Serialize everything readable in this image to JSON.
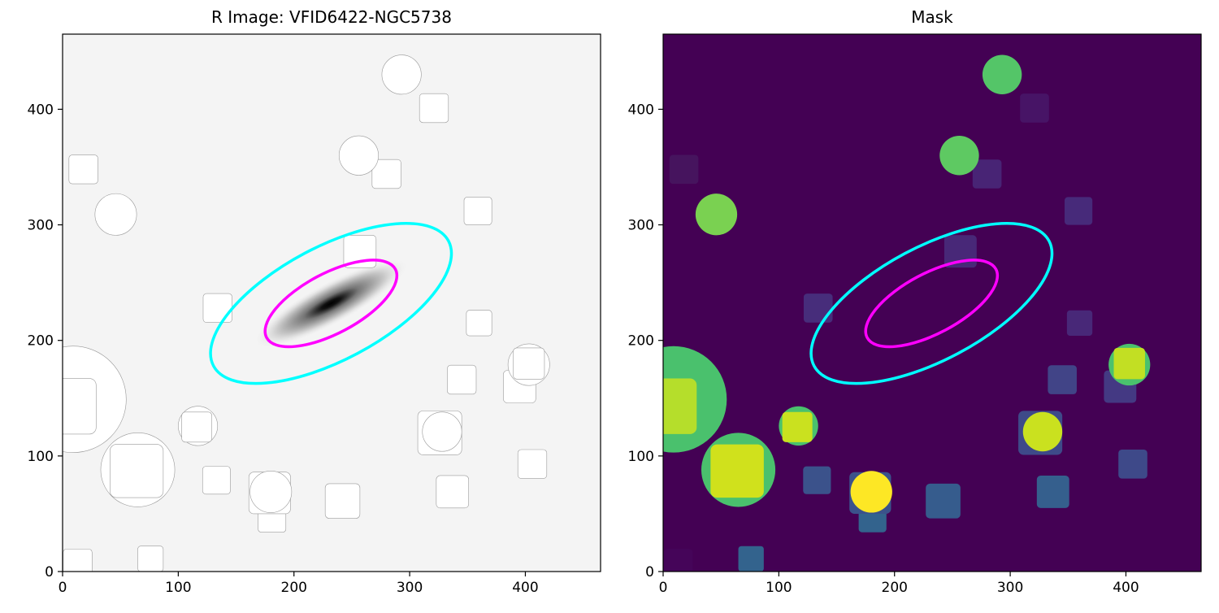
{
  "chart_data": [
    {
      "type": "image",
      "title": "R Image: VFID6422-NGC5738",
      "xlim": [
        0,
        465
      ],
      "ylim": [
        0,
        465
      ],
      "xticks": [
        0,
        100,
        200,
        300,
        400
      ],
      "yticks": [
        0,
        100,
        200,
        300,
        400
      ],
      "colormap": "gray_r",
      "background": "#f4f4f4",
      "galaxy": {
        "x": 232,
        "y": 232,
        "major": 75,
        "minor": 18,
        "angle_deg": 28
      },
      "masked_color": "#ffffff",
      "ellipses": [
        {
          "x": 232,
          "y": 232,
          "a": 115,
          "b": 49,
          "angle_deg": 28,
          "color": "#00ffff"
        },
        {
          "x": 232,
          "y": 232,
          "a": 63,
          "b": 26,
          "angle_deg": 28,
          "color": "#ff00ff"
        }
      ]
    },
    {
      "type": "image",
      "title": "Mask",
      "xlim": [
        0,
        465
      ],
      "ylim": [
        0,
        465
      ],
      "xticks": [
        0,
        100,
        200,
        300,
        400
      ],
      "yticks": [
        0,
        100,
        200,
        300,
        400
      ],
      "colormap": "viridis",
      "background": "#440154",
      "ellipses": [
        {
          "x": 232,
          "y": 232,
          "a": 115,
          "b": 49,
          "angle_deg": 28,
          "color": "#00ffff"
        },
        {
          "x": 232,
          "y": 232,
          "a": 63,
          "b": 26,
          "angle_deg": 28,
          "color": "#ff00ff"
        }
      ]
    }
  ],
  "mask_regions": [
    {
      "shape": "circle",
      "x": 9,
      "y": 149,
      "r": 46,
      "color": "#4ac16d"
    },
    {
      "shape": "square",
      "x": 5,
      "y": 143,
      "s": 48,
      "color": "#b5de2b"
    },
    {
      "shape": "circle",
      "x": 65,
      "y": 88,
      "r": 32,
      "color": "#4ac16d"
    },
    {
      "shape": "square",
      "x": 64,
      "y": 87,
      "s": 46,
      "color": "#d0e11c"
    },
    {
      "shape": "square",
      "x": 18,
      "y": 348,
      "s": 25,
      "color": "#46145e"
    },
    {
      "shape": "circle",
      "x": 46,
      "y": 309,
      "r": 18,
      "color": "#7ad151"
    },
    {
      "shape": "circle",
      "x": 293,
      "y": 430,
      "r": 17,
      "color": "#54c568"
    },
    {
      "shape": "square",
      "x": 321,
      "y": 401,
      "s": 25,
      "color": "#471466"
    },
    {
      "shape": "square",
      "x": 280,
      "y": 344,
      "s": 25,
      "color": "#482475"
    },
    {
      "shape": "circle",
      "x": 256,
      "y": 360,
      "r": 17,
      "color": "#5ec962"
    },
    {
      "shape": "square",
      "x": 359,
      "y": 312,
      "s": 24,
      "color": "#472a7a"
    },
    {
      "shape": "square",
      "x": 257,
      "y": 277,
      "s": 28,
      "color": "#482878"
    },
    {
      "shape": "square",
      "x": 134,
      "y": 228,
      "s": 25,
      "color": "#472d7b"
    },
    {
      "shape": "square",
      "x": 360,
      "y": 215,
      "s": 22,
      "color": "#482878"
    },
    {
      "shape": "square",
      "x": 395,
      "y": 160,
      "s": 28,
      "color": "#443983"
    },
    {
      "shape": "circle",
      "x": 403,
      "y": 179,
      "r": 18,
      "color": "#4ac16d"
    },
    {
      "shape": "square",
      "x": 403,
      "y": 180,
      "s": 27,
      "color": "#c2df23"
    },
    {
      "shape": "square",
      "x": 345,
      "y": 166,
      "s": 25,
      "color": "#414487"
    },
    {
      "shape": "circle",
      "x": 117,
      "y": 126,
      "r": 17,
      "color": "#4ac16d"
    },
    {
      "shape": "square",
      "x": 116,
      "y": 125,
      "s": 26,
      "color": "#cae11f"
    },
    {
      "shape": "square",
      "x": 326,
      "y": 120,
      "s": 38,
      "color": "#3e4a89"
    },
    {
      "shape": "circle",
      "x": 328,
      "y": 121,
      "r": 17,
      "color": "#cae11f"
    },
    {
      "shape": "square",
      "x": 406,
      "y": 93,
      "s": 25,
      "color": "#3e4989"
    },
    {
      "shape": "square",
      "x": 133,
      "y": 79,
      "s": 24,
      "color": "#3b528b"
    },
    {
      "shape": "square",
      "x": 181,
      "y": 46,
      "s": 24,
      "color": "#33638d"
    },
    {
      "shape": "square",
      "x": 179,
      "y": 68,
      "s": 36,
      "color": "#3b528b"
    },
    {
      "shape": "circle",
      "x": 180,
      "y": 69,
      "r": 18,
      "color": "#fde725"
    },
    {
      "shape": "square",
      "x": 242,
      "y": 61,
      "s": 30,
      "color": "#365c8d"
    },
    {
      "shape": "square",
      "x": 337,
      "y": 69,
      "s": 28,
      "color": "#355f8d"
    },
    {
      "shape": "square",
      "x": 76,
      "y": 11,
      "s": 22,
      "color": "#33638d"
    },
    {
      "shape": "square",
      "x": 13,
      "y": 7,
      "s": 25,
      "color": "#450559"
    }
  ]
}
